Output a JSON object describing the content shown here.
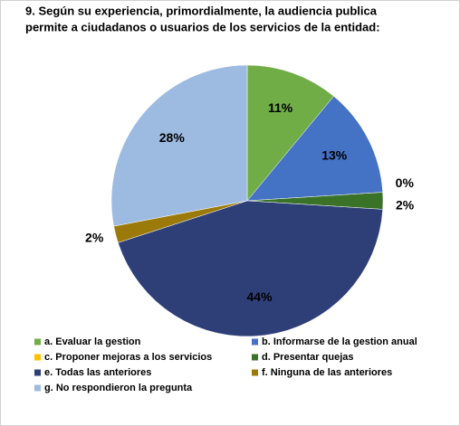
{
  "chart_data": {
    "type": "pie",
    "title": [
      "9. Según su experiencia, primordialmente, la audiencia publica",
      "permite a ciudadanos o usuarios de los servicios de la entidad:"
    ],
    "categories": [
      "a. Evaluar la gestion",
      "b. Informarse de la gestion anual",
      "c. Proponer mejoras a los servicios",
      "d. Presentar quejas",
      "e. Todas las anteriores",
      "f. Ninguna de las anteriores",
      "g. No respondieron la pregunta"
    ],
    "values": [
      11,
      13,
      0,
      2,
      44,
      2,
      28
    ],
    "value_labels": [
      "11%",
      "13%",
      "0%",
      "2%",
      "44%",
      "2%",
      "28%"
    ],
    "colors": [
      "#70ad47",
      "#4472c4",
      "#ffc000",
      "#3a7228",
      "#2e3f78",
      "#9c7a0a",
      "#9dbbe0"
    ],
    "legend": "bottom"
  }
}
